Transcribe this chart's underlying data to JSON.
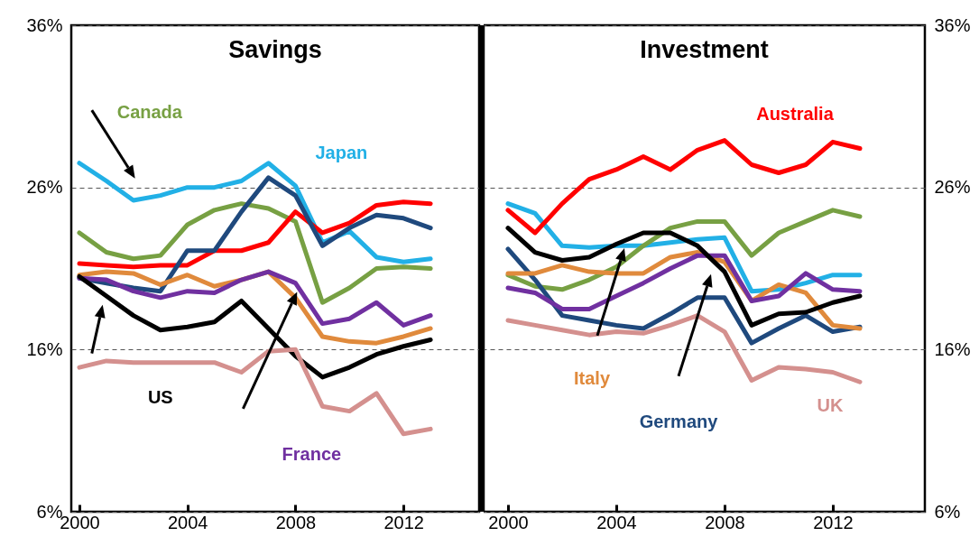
{
  "chart_data": [
    {
      "type": "line",
      "title": "Savings",
      "x": [
        2000,
        2001,
        2002,
        2003,
        2004,
        2005,
        2006,
        2007,
        2008,
        2009,
        2010,
        2011,
        2012,
        2013
      ],
      "xlim": [
        1999.7,
        2014.8
      ],
      "xticks": [
        2000,
        2004,
        2008,
        2012
      ],
      "ylim": [
        6,
        36
      ],
      "yticks": [
        {
          "value": 6,
          "label": "6%"
        },
        {
          "value": 16,
          "label": "16%"
        },
        {
          "value": 26,
          "label": "26%"
        },
        {
          "value": 36,
          "label": "36%"
        }
      ],
      "grid": "y",
      "series": [
        {
          "name": "Japan",
          "color": "#22b0e6",
          "values": [
            27.5,
            26.4,
            25.2,
            25.5,
            26.0,
            26.0,
            26.4,
            27.5,
            26.1,
            22.6,
            23.3,
            21.7,
            21.4,
            21.6
          ]
        },
        {
          "name": "Canada",
          "color": "#77a043",
          "values": [
            23.2,
            22.0,
            21.6,
            21.8,
            23.7,
            24.6,
            25.0,
            24.7,
            23.9,
            18.9,
            19.8,
            21.0,
            21.1,
            21.0
          ]
        },
        {
          "color": "#ff0000",
          "values": [
            21.3,
            21.2,
            21.1,
            21.2,
            21.2,
            22.1,
            22.1,
            22.6,
            24.5,
            23.2,
            23.8,
            24.9,
            25.1,
            25.0
          ]
        },
        {
          "color": "#1f497d",
          "values": [
            20.4,
            20.1,
            19.8,
            19.6,
            22.1,
            22.1,
            24.5,
            26.6,
            25.5,
            22.4,
            23.5,
            24.3,
            24.1,
            23.5
          ]
        },
        {
          "color": "#e08a3c",
          "values": [
            20.6,
            20.8,
            20.7,
            20.0,
            20.6,
            19.9,
            20.3,
            20.8,
            19.2,
            16.8,
            16.5,
            16.4,
            16.8,
            17.3
          ]
        },
        {
          "name": "France",
          "color": "#7030a0",
          "values": [
            20.4,
            20.3,
            19.6,
            19.2,
            19.6,
            19.5,
            20.3,
            20.8,
            20.1,
            17.6,
            17.9,
            18.9,
            17.5,
            18.1
          ]
        },
        {
          "name": "US",
          "color": "#000000",
          "values": [
            20.5,
            19.3,
            18.1,
            17.2,
            17.4,
            17.7,
            19.0,
            17.3,
            15.6,
            14.3,
            14.9,
            15.7,
            16.2,
            16.6
          ]
        },
        {
          "color": "#d4908e",
          "values": [
            14.9,
            15.3,
            15.2,
            15.2,
            15.2,
            15.2,
            14.6,
            15.9,
            16.0,
            12.5,
            12.2,
            13.3,
            10.8,
            11.1
          ]
        }
      ]
    },
    {
      "type": "line",
      "title": "Investment",
      "x": [
        2000,
        2001,
        2002,
        2003,
        2004,
        2005,
        2006,
        2007,
        2008,
        2009,
        2010,
        2011,
        2012,
        2013
      ],
      "xlim": [
        1999.1,
        2015.4
      ],
      "xticks": [
        2000,
        2004,
        2008,
        2012
      ],
      "y2lim": [
        6,
        36
      ],
      "y2ticks": [
        {
          "value": 6,
          "label": "6%"
        },
        {
          "value": 16,
          "label": "16%"
        },
        {
          "value": 26,
          "label": "26%"
        },
        {
          "value": 36,
          "label": "36%"
        }
      ],
      "grid": "y",
      "series": [
        {
          "color": "#22b0e6",
          "axis": "y2",
          "values": [
            25.0,
            24.4,
            22.4,
            22.3,
            22.4,
            22.4,
            22.6,
            22.8,
            22.9,
            19.6,
            19.7,
            20.1,
            20.6,
            20.6
          ]
        },
        {
          "color": "#77a043",
          "axis": "y2",
          "values": [
            20.6,
            19.9,
            19.7,
            20.3,
            21.1,
            22.4,
            23.5,
            23.9,
            23.9,
            21.8,
            23.2,
            23.9,
            24.6,
            24.2
          ]
        },
        {
          "name": "Australia",
          "color": "#ff0000",
          "axis": "y2",
          "values": [
            24.6,
            23.2,
            25.0,
            26.5,
            27.1,
            27.9,
            27.1,
            28.3,
            28.9,
            27.4,
            26.9,
            27.4,
            28.8,
            28.4
          ]
        },
        {
          "name": "Germany",
          "color": "#1f497d",
          "axis": "y2",
          "values": [
            22.2,
            20.3,
            18.1,
            17.8,
            17.5,
            17.3,
            18.2,
            19.2,
            19.2,
            16.4,
            17.3,
            18.1,
            17.1,
            17.4
          ]
        },
        {
          "name": "Italy",
          "color": "#e08a3c",
          "axis": "y2",
          "values": [
            20.7,
            20.7,
            21.2,
            20.8,
            20.7,
            20.7,
            21.7,
            22.0,
            21.4,
            19.0,
            20.0,
            19.5,
            17.5,
            17.3
          ]
        },
        {
          "color": "#7030a0",
          "axis": "y2",
          "values": [
            19.8,
            19.5,
            18.5,
            18.5,
            19.3,
            20.1,
            21.0,
            21.8,
            21.8,
            19.0,
            19.3,
            20.7,
            19.7,
            19.6
          ]
        },
        {
          "color": "#000000",
          "axis": "y2",
          "values": [
            23.5,
            22.0,
            21.5,
            21.7,
            22.5,
            23.2,
            23.2,
            22.4,
            20.8,
            17.5,
            18.2,
            18.3,
            18.9,
            19.3
          ]
        },
        {
          "name": "UK",
          "color": "#d4908e",
          "axis": "y2",
          "values": [
            17.8,
            17.5,
            17.2,
            16.9,
            17.1,
            17.0,
            17.5,
            18.1,
            17.1,
            14.1,
            14.9,
            14.8,
            14.6,
            14.0
          ]
        }
      ]
    }
  ]
}
